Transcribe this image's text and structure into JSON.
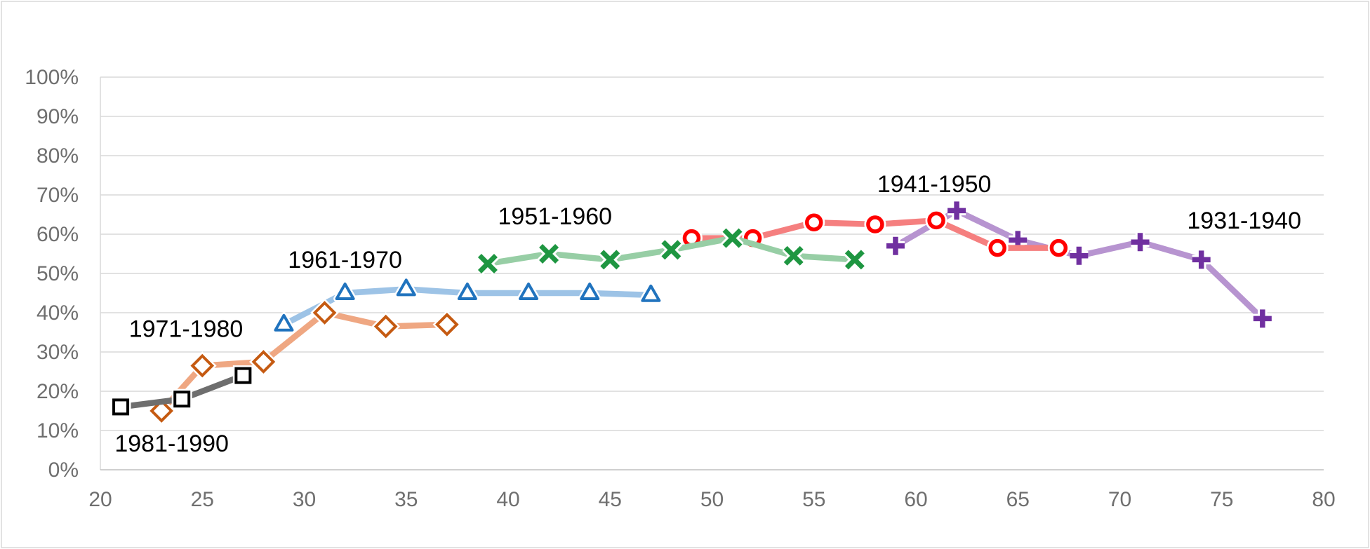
{
  "chart_data": {
    "type": "line",
    "title": "",
    "xlabel": "",
    "ylabel": "",
    "x_axis": {
      "min": 20,
      "max": 80,
      "tick_step": 5,
      "tick_labels": [
        "20",
        "25",
        "30",
        "35",
        "40",
        "45",
        "50",
        "55",
        "60",
        "65",
        "70",
        "75",
        "80"
      ]
    },
    "y_axis": {
      "min": 0,
      "max": 100,
      "tick_step": 10,
      "tick_labels": [
        "0%",
        "10%",
        "20%",
        "30%",
        "40%",
        "50%",
        "60%",
        "70%",
        "80%",
        "90%",
        "100%"
      ]
    },
    "grid": "horizontal-only",
    "legend_position": "none-inline-data-labels",
    "series": [
      {
        "name": "1931-1940",
        "marker": "plus",
        "marker_color": "#7030A0",
        "line_color": "#B794D0",
        "points": [
          [
            59,
            57
          ],
          [
            62,
            66
          ],
          [
            65,
            58.5
          ],
          [
            68,
            54.5
          ],
          [
            71,
            58
          ],
          [
            74,
            53.5
          ],
          [
            77,
            38.5
          ]
        ]
      },
      {
        "name": "1941-1950",
        "marker": "circle",
        "marker_color": "#FF0000",
        "line_color": "#F57F7F",
        "points": [
          [
            49,
            59
          ],
          [
            52,
            59
          ],
          [
            55,
            63
          ],
          [
            58,
            62.5
          ],
          [
            61,
            63.5
          ],
          [
            64,
            56.5
          ],
          [
            67,
            56.5
          ]
        ]
      },
      {
        "name": "1951-1960",
        "marker": "x",
        "marker_color": "#1E9641",
        "line_color": "#97CEA5",
        "points": [
          [
            39,
            52.5
          ],
          [
            42,
            55
          ],
          [
            45,
            53.5
          ],
          [
            48,
            56
          ],
          [
            51,
            59
          ],
          [
            54,
            54.5
          ],
          [
            57,
            53.5
          ]
        ]
      },
      {
        "name": "1961-1970",
        "marker": "triangle",
        "marker_color": "#2073BE",
        "line_color": "#9DC3E6",
        "points": [
          [
            29,
            37
          ],
          [
            32,
            45
          ],
          [
            35,
            46
          ],
          [
            38,
            45
          ],
          [
            41,
            45
          ],
          [
            44,
            45
          ],
          [
            47,
            44.5
          ]
        ]
      },
      {
        "name": "1971-1980",
        "marker": "diamond",
        "marker_color": "#C55A11",
        "line_color": "#EFA782",
        "points": [
          [
            23,
            15
          ],
          [
            25,
            26.5
          ],
          [
            28,
            27.5
          ],
          [
            31,
            40
          ],
          [
            34,
            36.5
          ],
          [
            37,
            37
          ]
        ]
      },
      {
        "name": "1981-1990",
        "marker": "square",
        "marker_color": "#000000",
        "line_color": "#6E6E6E",
        "points": [
          [
            21,
            16
          ],
          [
            24,
            18
          ],
          [
            27,
            24
          ]
        ]
      }
    ],
    "annotations": [
      {
        "text": "1941-1950",
        "age": 60.9,
        "pct": 70.7
      },
      {
        "text": "1951-1960",
        "age": 42.3,
        "pct": 62.5
      },
      {
        "text": "1961-1970",
        "age": 32.0,
        "pct": 51.4
      },
      {
        "text": "1971-1980",
        "age": 24.2,
        "pct": 33.8
      },
      {
        "text": "1981-1990",
        "age": 23.5,
        "pct": 4.6
      },
      {
        "text": "1931-1940",
        "age": 76.1,
        "pct": 61.4
      }
    ],
    "colors": {
      "background": "#FFFFFF",
      "outer_border": "#D9D9D9",
      "gridline": "#D9D9D9",
      "axis_line": "#BFBFBF",
      "tick_text": "#6F6F6F",
      "annotation_text": "#000000"
    }
  }
}
